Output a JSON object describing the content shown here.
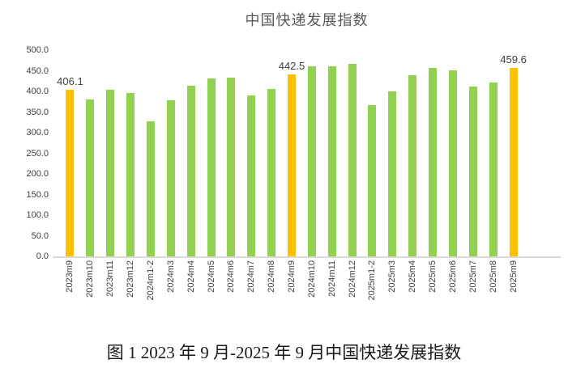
{
  "chart_data": {
    "type": "bar",
    "title": "中国快递发展指数",
    "caption": "图 1 2023 年 9 月-2025 年 9 月中国快递发展指数",
    "categories": [
      "2023m9",
      "2023m10",
      "2023m11",
      "2023m12",
      "2024m1-2",
      "2024m3",
      "2024m4",
      "2024m5",
      "2024m6",
      "2024m7",
      "2024m8",
      "2024m9",
      "2024m10",
      "2024m11",
      "2024m12",
      "2025m1-2",
      "2025m3",
      "2025m4",
      "2025m5",
      "2025m6",
      "2025m7",
      "2025m8",
      "2025m9"
    ],
    "values": [
      406.1,
      383,
      406,
      399,
      329,
      381,
      416,
      433,
      435,
      393,
      407,
      442.5,
      463,
      462,
      469,
      368,
      402,
      442,
      458,
      452,
      413,
      424,
      459.6
    ],
    "highlight_indices": [
      0,
      11,
      22
    ],
    "data_labels": [
      {
        "index": 0,
        "text": "406.1"
      },
      {
        "index": 11,
        "text": "442.5"
      },
      {
        "index": 22,
        "text": "459.6"
      }
    ],
    "xlabel": "",
    "ylabel": "",
    "ylim": [
      0,
      500
    ],
    "ytick_step": 50,
    "ytick_labels": [
      "500.0",
      "450.0",
      "400.0",
      "350.0",
      "300.0",
      "250.0",
      "200.0",
      "150.0",
      "100.0",
      "50.0",
      "0.0"
    ],
    "grid": false,
    "legend": "none",
    "colors": {
      "bar_green": "#92D050",
      "bar_highlight_orange": "#FFC000",
      "axis_line": "#D9D9D9",
      "tick_text": "#404040",
      "title_text": "#595959",
      "caption_text": "#1A1A1A"
    }
  }
}
